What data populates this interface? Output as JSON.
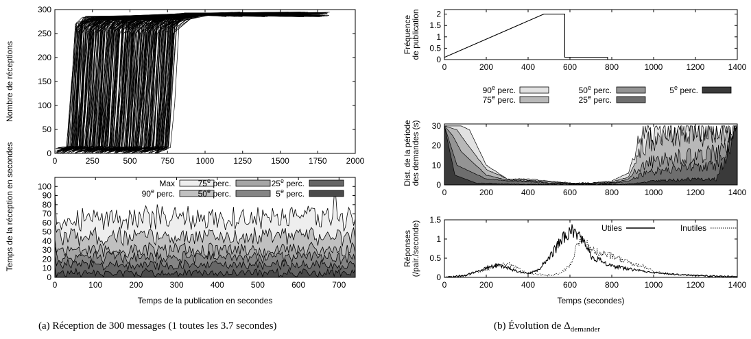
{
  "caption_left": "(a)  Réception de 300 messages (1 toutes les 3.7 secondes)",
  "caption_right_prefix": "(b)  Évolution de Δ",
  "caption_right_sub": "demander",
  "chart_data": [
    {
      "id": "receptions",
      "type": "line",
      "title": "",
      "xlabel": "",
      "ylabel": "Nombre de réceptions",
      "xlim": [
        0,
        2000
      ],
      "ylim": [
        0,
        300
      ],
      "xticks": [
        0,
        250,
        500,
        750,
        1000,
        1250,
        1500,
        1750,
        2000
      ],
      "yticks": [
        0,
        50,
        100,
        150,
        200,
        250,
        300
      ],
      "series_count": 300,
      "series_note_omitted": true,
      "x_step_start_range": [
        80,
        760
      ],
      "x_tail_end_range": [
        1100,
        1830
      ],
      "series": [
        {
          "x": [
            0,
            80,
            120,
            170,
            260,
            900,
            1400,
            1830
          ],
          "y": [
            0,
            10,
            120,
            250,
            280,
            290,
            292,
            293
          ]
        },
        {
          "x": [
            30,
            430,
            470,
            520,
            620,
            1100,
            1500
          ],
          "y": [
            0,
            10,
            130,
            250,
            282,
            290,
            294
          ]
        },
        {
          "x": [
            60,
            750,
            790,
            830,
            950,
            1300,
            1600
          ],
          "y": [
            0,
            10,
            140,
            255,
            283,
            291,
            295
          ]
        }
      ]
    },
    {
      "id": "reception-time",
      "type": "area",
      "xlabel": "Temps de la publication en secondes",
      "ylabel": "Temps de la réception en secondes",
      "xlim": [
        0,
        740
      ],
      "ylim": [
        0,
        110
      ],
      "xticks": [
        0,
        100,
        200,
        300,
        400,
        500,
        600,
        700
      ],
      "yticks": [
        0,
        10,
        20,
        30,
        40,
        50,
        60,
        70,
        80,
        90,
        100
      ],
      "legend_position": "top-right",
      "series": [
        {
          "name": "Max",
          "mean": 65,
          "amp": 12,
          "first": 95,
          "spike_x": 690,
          "spike_y": 90,
          "color": "#eeeeee"
        },
        {
          "name": "90e perc.",
          "mean": 45,
          "amp": 9,
          "first": 60,
          "color": "#c0c0c0"
        },
        {
          "name": "75e perc.",
          "mean": 30,
          "amp": 7,
          "first": 42,
          "color": "#a6a6a6"
        },
        {
          "name": "50e perc.",
          "mean": 22,
          "amp": 6,
          "first": 34,
          "color": "#858585"
        },
        {
          "name": "25e perc.",
          "mean": 14,
          "amp": 5,
          "first": 24,
          "color": "#666666"
        },
        {
          "name": "5e perc.",
          "mean": 5,
          "amp": 4,
          "first": 12,
          "color": "#4a4a4a"
        }
      ]
    },
    {
      "id": "publication-frequency",
      "type": "line",
      "ylabel": "Fréquence de publication",
      "xlim": [
        0,
        1400
      ],
      "ylim": [
        0,
        2.2
      ],
      "xticks": [
        0,
        200,
        400,
        600,
        800,
        1000,
        1200,
        1400
      ],
      "yticks": [
        0,
        0.5,
        1,
        1.5,
        2
      ],
      "series": [
        {
          "x": [
            0,
            475,
            575,
            575,
            780,
            780
          ],
          "y": [
            0.1,
            2,
            2,
            0.1,
            0.1,
            0
          ]
        }
      ]
    },
    {
      "id": "request-period",
      "type": "area",
      "ylabel": "Dist. de la période des demandes (s)",
      "xlim": [
        0,
        1400
      ],
      "ylim": [
        0,
        31
      ],
      "xticks": [
        0,
        200,
        400,
        600,
        800,
        1000,
        1200,
        1400
      ],
      "yticks": [
        0,
        10,
        20,
        30
      ],
      "legend_position": "top",
      "series": [
        {
          "name": "90e perc.",
          "color": "#e2e2e2",
          "x": [
            0,
            80,
            120,
            200,
            300,
            400,
            500,
            600,
            700,
            800,
            880,
            940,
            1000,
            1100,
            1200,
            1300,
            1400
          ],
          "y": [
            30,
            30,
            28,
            10,
            3,
            3,
            2,
            1,
            1,
            2,
            6,
            28,
            28,
            30,
            30,
            30,
            30
          ]
        },
        {
          "name": "75e perc.",
          "color": "#b8b8b8",
          "x": [
            0,
            60,
            100,
            200,
            300,
            400,
            500,
            600,
            700,
            800,
            880,
            940,
            1000,
            1100,
            1200,
            1300,
            1400
          ],
          "y": [
            30,
            28,
            22,
            8,
            3,
            2.5,
            1.5,
            1,
            1,
            1.5,
            4,
            18,
            24,
            26,
            27,
            28,
            30
          ]
        },
        {
          "name": "50e perc.",
          "color": "#949494",
          "x": [
            0,
            40,
            80,
            200,
            300,
            400,
            500,
            600,
            700,
            800,
            880,
            940,
            1000,
            1100,
            1200,
            1300,
            1400
          ],
          "y": [
            30,
            25,
            17,
            5,
            2.5,
            2,
            1,
            0.8,
            0.8,
            1,
            3,
            10,
            12,
            14,
            15,
            16,
            30
          ]
        },
        {
          "name": "25e perc.",
          "color": "#6e6e6e",
          "x": [
            0,
            30,
            60,
            200,
            300,
            400,
            500,
            600,
            700,
            800,
            880,
            940,
            1000,
            1100,
            1200,
            1300,
            1400
          ],
          "y": [
            30,
            20,
            10,
            3,
            2,
            1.5,
            0.8,
            0.5,
            0.5,
            0.8,
            2,
            5,
            7,
            8,
            9,
            10,
            30
          ]
        },
        {
          "name": "5e perc.",
          "color": "#3a3a3a",
          "x": [
            0,
            20,
            50,
            150,
            300,
            400,
            500,
            600,
            700,
            800,
            880,
            940,
            1000,
            1100,
            1200,
            1300,
            1400
          ],
          "y": [
            30,
            20,
            5,
            1,
            0.5,
            0.3,
            0.2,
            0.2,
            0.2,
            0.2,
            0.5,
            1,
            2,
            2.5,
            3,
            3,
            30
          ]
        }
      ]
    },
    {
      "id": "responses",
      "type": "line",
      "xlabel": "Temps (secondes)",
      "ylabel": "Réponses (/pair./seconde)",
      "xlim": [
        0,
        1400
      ],
      "ylim": [
        0,
        1.5
      ],
      "xticks": [
        0,
        200,
        400,
        600,
        800,
        1000,
        1200,
        1400
      ],
      "yticks": [
        0,
        0.5,
        1,
        1.5
      ],
      "legend_position": "top-right",
      "series": [
        {
          "name": "Utiles",
          "style": "solid",
          "x": [
            0,
            100,
            200,
            250,
            300,
            350,
            400,
            450,
            500,
            550,
            600,
            650,
            700,
            800,
            900,
            1000,
            1100,
            1200,
            1300,
            1400
          ],
          "y": [
            0,
            0.05,
            0.25,
            0.3,
            0.25,
            0.15,
            0.1,
            0.2,
            0.5,
            0.9,
            1.2,
            1.1,
            0.55,
            0.3,
            0.2,
            0.12,
            0.08,
            0.05,
            0.03,
            0.02
          ]
        },
        {
          "name": "Inutiles",
          "style": "dotted",
          "x": [
            0,
            100,
            200,
            250,
            300,
            350,
            400,
            450,
            500,
            550,
            600,
            650,
            700,
            800,
            900,
            950,
            1000,
            1100,
            1200,
            1300,
            1400
          ],
          "y": [
            0,
            0.05,
            0.2,
            0.3,
            0.35,
            0.25,
            0.1,
            0.08,
            0.05,
            0.1,
            0.3,
            1.1,
            0.7,
            0.55,
            0.35,
            0.3,
            0.15,
            0.08,
            0.05,
            0.03,
            0.02
          ]
        }
      ]
    }
  ]
}
